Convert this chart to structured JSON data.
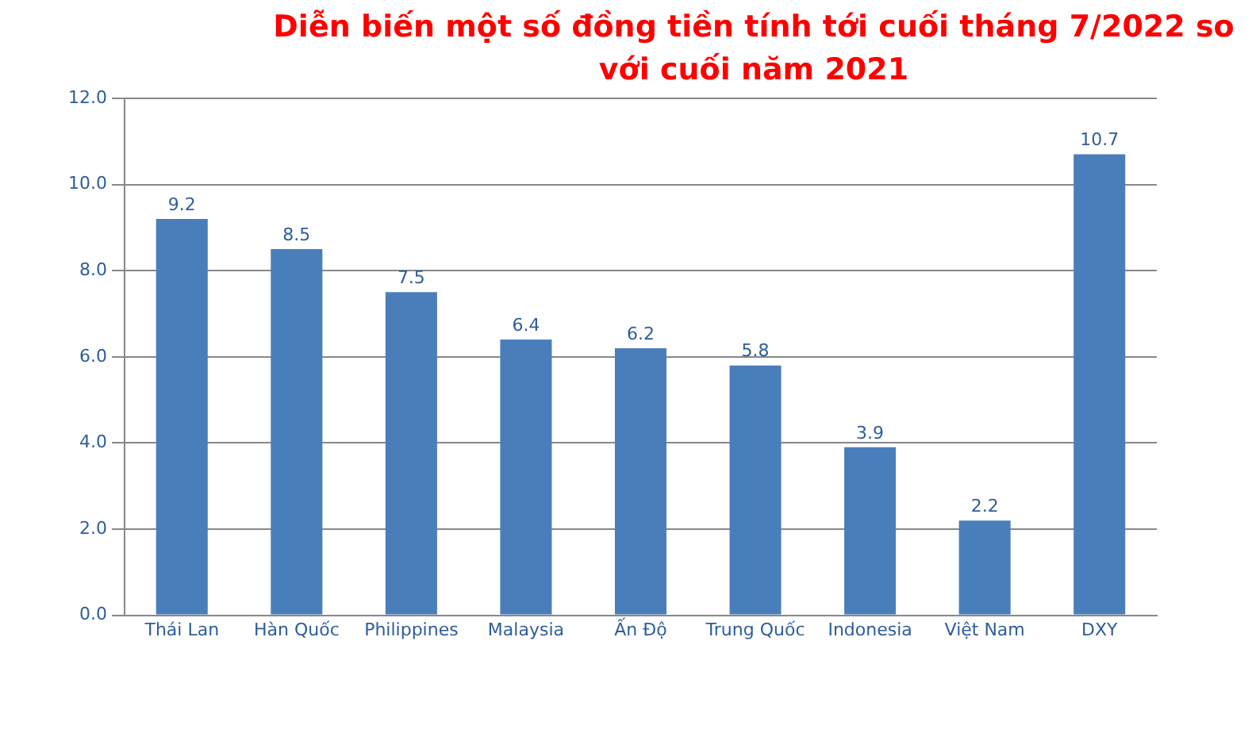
{
  "chart_data": {
    "type": "bar",
    "title": "Diễn biến một số đồng tiền tính tới cuối tháng 7/2022 so với cuối năm 2021",
    "categories": [
      "Thái Lan",
      "Hàn Quốc",
      "Philippines",
      "Malaysia",
      "Ấn Độ",
      "Trung Quốc",
      "Indonesia",
      "Việt Nam",
      "DXY"
    ],
    "values": [
      9.2,
      8.5,
      7.5,
      6.4,
      6.2,
      5.8,
      3.9,
      2.2,
      10.7
    ],
    "color": "#4a7ebb",
    "ylim": [
      0,
      12
    ],
    "yticks": [
      {
        "value": 0,
        "label": "0.0"
      },
      {
        "value": 2,
        "label": "2.0"
      },
      {
        "value": 4,
        "label": "4.0"
      },
      {
        "value": 6,
        "label": "6.0"
      },
      {
        "value": 8,
        "label": "8.0"
      },
      {
        "value": 10,
        "label": "10.0"
      },
      {
        "value": 12,
        "label": "12.0"
      }
    ],
    "grid": "y",
    "data_labels": true
  }
}
